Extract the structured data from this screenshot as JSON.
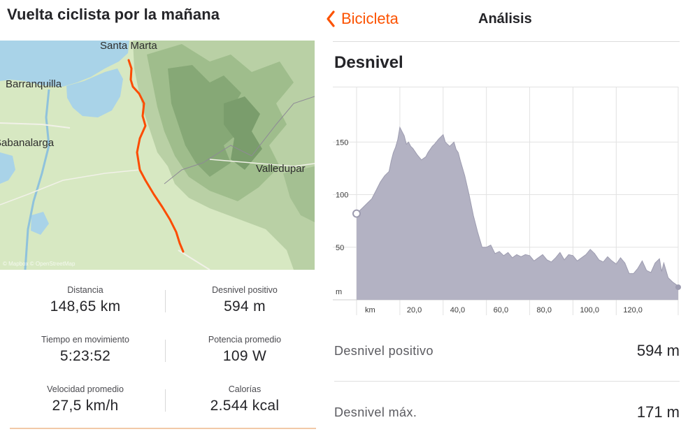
{
  "activity": {
    "title": "Vuelta ciclista por la mañana"
  },
  "map": {
    "places": [
      "Santa Marta",
      "Barranquilla",
      "Sabanalarga",
      "Valledupar"
    ],
    "attribution": "© Mapbox © OpenStreetMap",
    "colors": {
      "land": "#d7e8c2",
      "water": "#a9d3e8",
      "mountains": "#8fb28a",
      "route": "#fc4c02"
    }
  },
  "stats": [
    {
      "left": {
        "label": "Distancia",
        "value": "148,65 km"
      },
      "right": {
        "label": "Desnivel positivo",
        "value": "594 m"
      }
    },
    {
      "left": {
        "label": "Tiempo en movimiento",
        "value": "5:23:52"
      },
      "right": {
        "label": "Potencia promedio",
        "value": "109 W"
      }
    },
    {
      "left": {
        "label": "Velocidad promedio",
        "value": "27,5 km/h"
      },
      "right": {
        "label": "Calorías",
        "value": "2.544 kcal"
      }
    }
  ],
  "analysis": {
    "back_label": "Bicicleta",
    "screen_title": "Análisis",
    "section_title": "Desnivel",
    "accent_color": "#fc5200",
    "metrics": [
      {
        "label": "Desnivel positivo",
        "value": "594 m"
      },
      {
        "label": "Desnivel máx.",
        "value": "171 m"
      }
    ]
  },
  "chart_data": {
    "type": "area",
    "xlabel": "km",
    "ylabel": "m",
    "x_ticks": [
      "20,0",
      "40,0",
      "60,0",
      "80,0",
      "100,0",
      "120,0"
    ],
    "y_ticks": [
      "50",
      "100",
      "150"
    ],
    "xlim": [
      0,
      148.65
    ],
    "ylim": [
      0,
      200
    ],
    "grid": true,
    "fill_color": "#b3b2c3",
    "line_color": "#9d9cb0",
    "series": [
      {
        "x": [
          0,
          1,
          3,
          5,
          7,
          9,
          11,
          13,
          15,
          16,
          17,
          18,
          19,
          20,
          21,
          22,
          23,
          24,
          25,
          26,
          28,
          30,
          32,
          33,
          34,
          35,
          36,
          38,
          40,
          41,
          42,
          43,
          44,
          45,
          46,
          47,
          48,
          50,
          52,
          54,
          56,
          58,
          60,
          62,
          64,
          66,
          68,
          70,
          72,
          74,
          76,
          78,
          80,
          82,
          84,
          86,
          88,
          90,
          92,
          94,
          96,
          98,
          100,
          102,
          104,
          106,
          108,
          110,
          112,
          114,
          116,
          118,
          120,
          122,
          124,
          126,
          128,
          130,
          132,
          134,
          136,
          138,
          140,
          141,
          142,
          144,
          146,
          148,
          148.65
        ],
        "y": [
          82,
          84,
          88,
          92,
          96,
          104,
          112,
          118,
          122,
          132,
          140,
          145,
          152,
          164,
          160,
          156,
          148,
          150,
          146,
          144,
          138,
          133,
          136,
          140,
          143,
          146,
          148,
          153,
          157,
          150,
          148,
          146,
          148,
          150,
          143,
          140,
          132,
          118,
          100,
          80,
          64,
          50,
          50,
          52,
          44,
          46,
          42,
          45,
          40,
          43,
          41,
          43,
          42,
          37,
          40,
          43,
          38,
          36,
          40,
          45,
          38,
          43,
          42,
          37,
          40,
          43,
          48,
          44,
          38,
          36,
          41,
          37,
          34,
          40,
          35,
          25,
          25,
          30,
          37,
          28,
          26,
          35,
          39,
          27,
          35,
          21,
          17,
          14,
          12
        ]
      }
    ]
  }
}
